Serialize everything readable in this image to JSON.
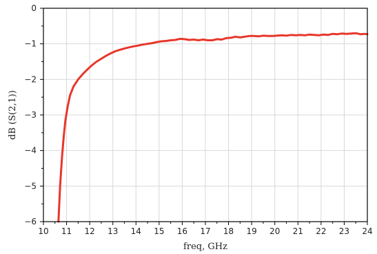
{
  "chart_data": {
    "type": "line",
    "xlabel": "freq, GHz",
    "ylabel": "dB (S(2,1))",
    "xlim": [
      10,
      24
    ],
    "ylim": [
      -6,
      0
    ],
    "xticks": [
      10,
      11,
      12,
      13,
      14,
      15,
      16,
      17,
      18,
      19,
      20,
      21,
      22,
      23,
      24
    ],
    "yticks": [
      0,
      -1,
      -2,
      -3,
      -4,
      -5,
      -6
    ],
    "grid": true,
    "line_color": "#e8362a",
    "series": [
      {
        "x": [
          10.65,
          10.72,
          10.8,
          10.88,
          10.95,
          11.05,
          11.15,
          11.3,
          11.5,
          11.7,
          11.9,
          12.1,
          12.3,
          12.5,
          12.7,
          12.9,
          13.1,
          13.3,
          13.5,
          13.7,
          13.9,
          14.1,
          14.3,
          14.5,
          14.7,
          14.9,
          15.1,
          15.3,
          15.5,
          15.7,
          15.9,
          16.1,
          16.3,
          16.5,
          16.7,
          16.9,
          17.1,
          17.3,
          17.5,
          17.7,
          17.9,
          18.1,
          18.3,
          18.5,
          18.7,
          18.9,
          19.1,
          19.3,
          19.5,
          19.7,
          19.9,
          20.1,
          20.3,
          20.5,
          20.7,
          20.9,
          21.1,
          21.3,
          21.5,
          21.7,
          21.9,
          22.1,
          22.3,
          22.5,
          22.7,
          22.9,
          23.1,
          23.3,
          23.5,
          23.7,
          23.9,
          24.0
        ],
        "values": [
          -6.0,
          -5.0,
          -4.2,
          -3.6,
          -3.15,
          -2.75,
          -2.45,
          -2.2,
          -2.0,
          -1.85,
          -1.72,
          -1.6,
          -1.5,
          -1.42,
          -1.34,
          -1.27,
          -1.21,
          -1.17,
          -1.13,
          -1.1,
          -1.07,
          -1.05,
          -1.02,
          -1.0,
          -0.98,
          -0.95,
          -0.93,
          -0.92,
          -0.9,
          -0.89,
          -0.86,
          -0.87,
          -0.89,
          -0.88,
          -0.9,
          -0.88,
          -0.9,
          -0.9,
          -0.87,
          -0.88,
          -0.84,
          -0.83,
          -0.8,
          -0.82,
          -0.8,
          -0.78,
          -0.78,
          -0.79,
          -0.77,
          -0.78,
          -0.78,
          -0.77,
          -0.76,
          -0.77,
          -0.75,
          -0.76,
          -0.75,
          -0.76,
          -0.74,
          -0.75,
          -0.76,
          -0.74,
          -0.75,
          -0.72,
          -0.73,
          -0.71,
          -0.72,
          -0.71,
          -0.7,
          -0.73,
          -0.72,
          -0.73
        ]
      }
    ]
  }
}
